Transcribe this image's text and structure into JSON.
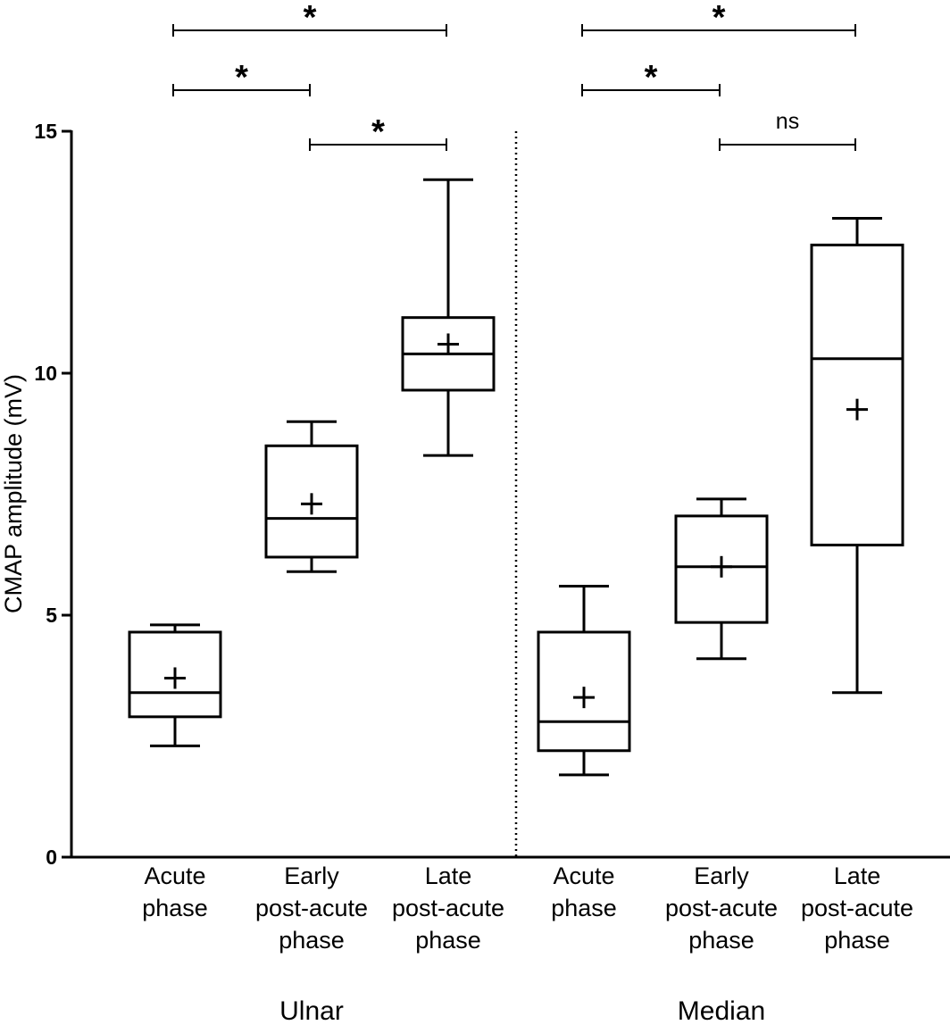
{
  "chart_data": {
    "type": "box",
    "ylabel": "CMAP amplitude (mV)",
    "ylim": [
      0,
      15
    ],
    "yticks": [
      "0",
      "5",
      "10",
      "15"
    ],
    "groups": [
      "Ulnar",
      "Median"
    ],
    "categories": [
      {
        "group": "Ulnar",
        "label": [
          "Acute",
          "phase"
        ]
      },
      {
        "group": "Ulnar",
        "label": [
          "Early",
          "post-acute",
          "phase"
        ]
      },
      {
        "group": "Ulnar",
        "label": [
          "Late",
          "post-acute",
          "phase"
        ]
      },
      {
        "group": "Median",
        "label": [
          "Acute",
          "phase"
        ]
      },
      {
        "group": "Median",
        "label": [
          "Early",
          "post-acute",
          "phase"
        ]
      },
      {
        "group": "Median",
        "label": [
          "Late",
          "post-acute",
          "phase"
        ]
      }
    ],
    "boxes": [
      {
        "min": 2.3,
        "q1": 2.9,
        "median": 3.4,
        "q3": 4.65,
        "max": 4.8,
        "mean": 3.7
      },
      {
        "min": 5.9,
        "q1": 6.2,
        "median": 7.0,
        "q3": 8.5,
        "max": 9.0,
        "mean": 7.3
      },
      {
        "min": 8.3,
        "q1": 9.65,
        "median": 10.4,
        "q3": 11.15,
        "max": 14.0,
        "mean": 10.6
      },
      {
        "min": 1.7,
        "q1": 2.2,
        "median": 2.8,
        "q3": 4.65,
        "max": 5.6,
        "mean": 3.3
      },
      {
        "min": 4.1,
        "q1": 4.85,
        "median": 6.0,
        "q3": 7.05,
        "max": 7.4,
        "mean": 6.0
      },
      {
        "min": 3.4,
        "q1": 6.45,
        "median": 10.3,
        "q3": 12.65,
        "max": 13.2,
        "mean": 9.25
      }
    ],
    "comparisons": [
      {
        "from": 0,
        "to": 2,
        "label": "*",
        "level": 3
      },
      {
        "from": 0,
        "to": 1,
        "label": "*",
        "level": 2
      },
      {
        "from": 1,
        "to": 2,
        "label": "*",
        "level": 1
      },
      {
        "from": 3,
        "to": 5,
        "label": "*",
        "level": 3
      },
      {
        "from": 3,
        "to": 4,
        "label": "*",
        "level": 2
      },
      {
        "from": 4,
        "to": 5,
        "label": "ns",
        "level": 1
      }
    ]
  }
}
